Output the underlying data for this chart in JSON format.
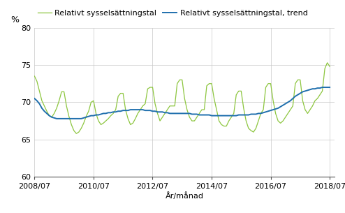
{
  "title": "",
  "ylabel": "%",
  "xlabel": "År/månad",
  "ylim": [
    60,
    80
  ],
  "yticks": [
    60,
    65,
    70,
    75,
    80
  ],
  "line1_label": "Relativt sysselsättningstal",
  "line1_color": "#8dc63f",
  "line2_label": "Relativt sysselsättningstal, trend",
  "line2_color": "#1f6fad",
  "xtick_labels": [
    "2008/07",
    "2010/07",
    "2012/07",
    "2014/07",
    "2016/07",
    "2018/07"
  ],
  "xtick_positions": [
    0,
    24,
    48,
    72,
    96,
    120
  ],
  "xlim": [
    0,
    122
  ],
  "line1_values": [
    73.5,
    72.8,
    71.5,
    70.2,
    69.5,
    68.8,
    68.2,
    68.0,
    68.5,
    69.2,
    70.2,
    71.4,
    71.4,
    69.5,
    68.1,
    67.0,
    66.2,
    65.8,
    66.0,
    66.5,
    67.2,
    68.1,
    68.8,
    70.0,
    70.2,
    68.5,
    67.5,
    67.0,
    67.2,
    67.5,
    67.8,
    68.2,
    68.5,
    69.0,
    70.8,
    71.2,
    71.2,
    69.0,
    67.8,
    67.0,
    67.2,
    67.8,
    68.5,
    69.0,
    69.5,
    69.8,
    71.8,
    72.0,
    72.0,
    69.8,
    68.5,
    67.5,
    68.0,
    68.5,
    69.0,
    69.5,
    69.5,
    69.5,
    72.5,
    73.0,
    73.0,
    70.5,
    69.0,
    68.0,
    67.5,
    67.5,
    68.0,
    68.5,
    69.0,
    69.0,
    72.2,
    72.5,
    72.5,
    70.5,
    69.0,
    67.5,
    67.0,
    66.8,
    66.8,
    67.5,
    68.0,
    68.5,
    71.0,
    71.5,
    71.5,
    69.2,
    67.5,
    66.5,
    66.2,
    66.0,
    66.5,
    67.5,
    68.5,
    69.0,
    72.0,
    72.5,
    72.5,
    70.2,
    68.5,
    67.5,
    67.2,
    67.5,
    68.0,
    68.5,
    69.0,
    69.5,
    72.5,
    73.0,
    73.0,
    70.2,
    69.0,
    68.5,
    69.0,
    69.5,
    70.2,
    70.5,
    71.0,
    71.5,
    74.5,
    75.3,
    74.8
  ],
  "line2_values": [
    70.5,
    70.2,
    69.8,
    69.2,
    68.8,
    68.5,
    68.2,
    68.0,
    67.9,
    67.8,
    67.8,
    67.8,
    67.8,
    67.8,
    67.8,
    67.8,
    67.8,
    67.8,
    67.8,
    67.8,
    67.9,
    68.0,
    68.1,
    68.2,
    68.2,
    68.3,
    68.3,
    68.4,
    68.5,
    68.5,
    68.6,
    68.6,
    68.7,
    68.7,
    68.8,
    68.8,
    68.9,
    68.9,
    68.9,
    69.0,
    69.0,
    69.0,
    69.0,
    69.0,
    69.0,
    68.9,
    68.9,
    68.9,
    68.8,
    68.8,
    68.7,
    68.7,
    68.7,
    68.6,
    68.6,
    68.5,
    68.5,
    68.5,
    68.5,
    68.5,
    68.5,
    68.5,
    68.5,
    68.5,
    68.4,
    68.4,
    68.4,
    68.3,
    68.3,
    68.3,
    68.3,
    68.3,
    68.2,
    68.2,
    68.2,
    68.2,
    68.2,
    68.2,
    68.2,
    68.2,
    68.2,
    68.2,
    68.2,
    68.3,
    68.3,
    68.3,
    68.3,
    68.3,
    68.4,
    68.4,
    68.4,
    68.5,
    68.5,
    68.6,
    68.7,
    68.8,
    68.9,
    69.0,
    69.1,
    69.2,
    69.4,
    69.6,
    69.8,
    70.0,
    70.2,
    70.5,
    70.8,
    71.0,
    71.2,
    71.4,
    71.5,
    71.6,
    71.7,
    71.8,
    71.8,
    71.9,
    71.9,
    72.0,
    72.0,
    72.0,
    72.0
  ],
  "legend_fontsize": 8,
  "tick_fontsize": 8,
  "xlabel_fontsize": 8,
  "ylabel_fontsize": 9,
  "background_color": "#ffffff",
  "grid_color": "#c8c8c8",
  "spine_color": "#555555"
}
